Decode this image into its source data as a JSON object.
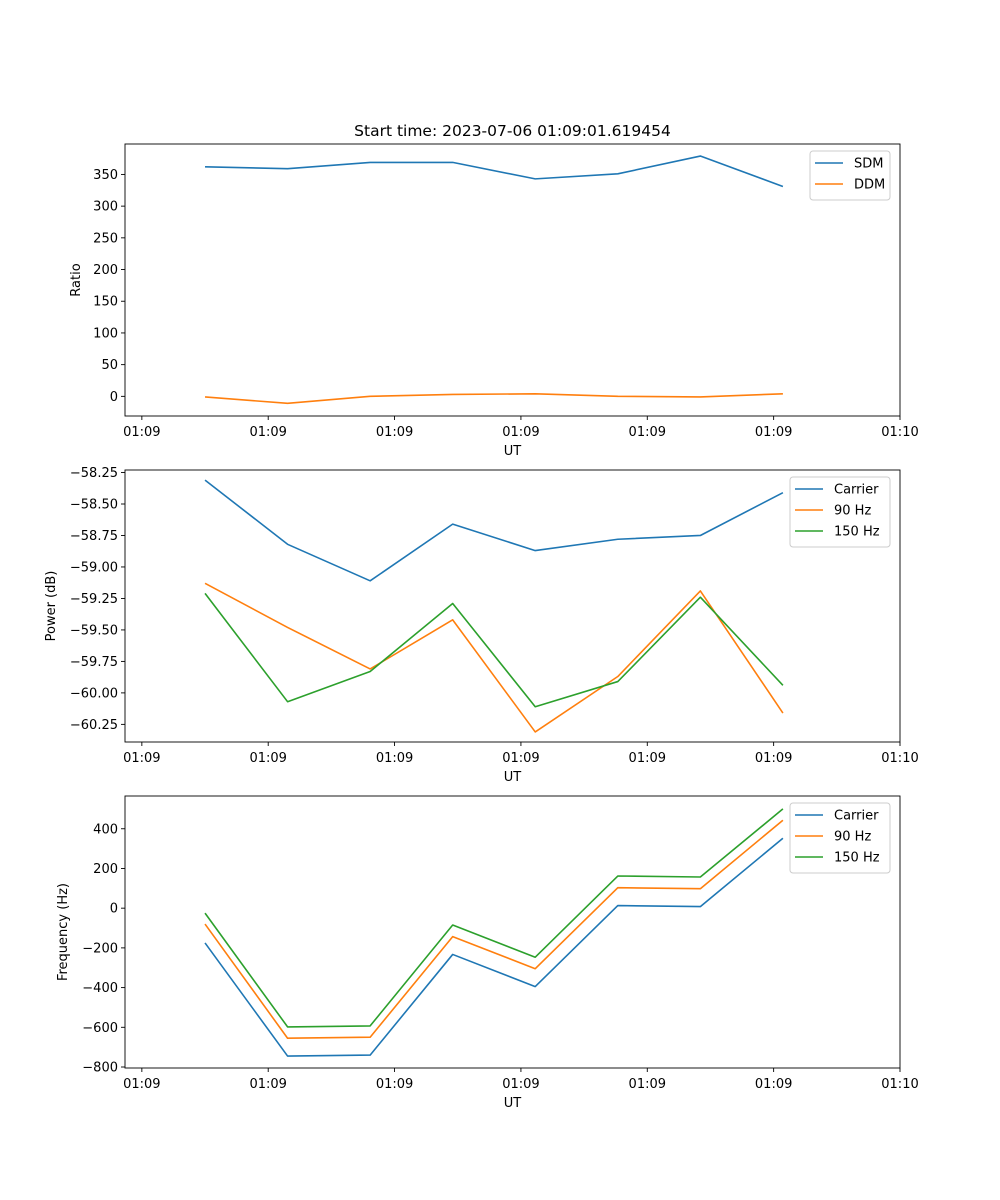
{
  "figure_title": "Start time: 2023-07-06 01:09:01.619454",
  "chart_data": [
    {
      "type": "line",
      "title": "Start time: 2023-07-06 01:09:01.619454",
      "xlabel": "UT",
      "ylabel": "Ratio",
      "xlim": [
        -0.2,
        9.0
      ],
      "ylim": [
        -31,
        398
      ],
      "x_ticks": [
        0,
        1.5,
        3,
        4.5,
        6,
        7.5,
        9
      ],
      "x_tick_labels": [
        "01:09",
        "01:09",
        "01:09",
        "01:09",
        "01:09",
        "01:09",
        "01:10"
      ],
      "y_ticks": [
        0,
        50,
        100,
        150,
        200,
        250,
        300,
        350
      ],
      "legend_position": "top-right",
      "x": [
        0.75,
        1.73,
        2.71,
        3.69,
        4.67,
        5.65,
        6.63,
        7.61
      ],
      "series": [
        {
          "name": "SDM",
          "color": "#1f77b4",
          "values": [
            362,
            359,
            369,
            369,
            343,
            351,
            379,
            331
          ]
        },
        {
          "name": "DDM",
          "color": "#ff7f0e",
          "values": [
            -1,
            -11,
            0,
            3,
            4,
            0,
            -1,
            4
          ]
        }
      ]
    },
    {
      "type": "line",
      "title": "",
      "xlabel": "UT",
      "ylabel": "Power (dB)",
      "xlim": [
        -0.2,
        9.0
      ],
      "ylim": [
        -60.39,
        -58.23
      ],
      "x_ticks": [
        0,
        1.5,
        3,
        4.5,
        6,
        7.5,
        9
      ],
      "x_tick_labels": [
        "01:09",
        "01:09",
        "01:09",
        "01:09",
        "01:09",
        "01:09",
        "01:10"
      ],
      "y_ticks": [
        -60.25,
        -60.0,
        -59.75,
        -59.5,
        -59.25,
        -59.0,
        -58.75,
        -58.5,
        -58.25
      ],
      "y_tick_labels": [
        "−60.25",
        "−60.00",
        "−59.75",
        "−59.50",
        "−59.25",
        "−59.00",
        "−58.75",
        "−58.50",
        "−58.25"
      ],
      "legend_position": "top-right",
      "x": [
        0.75,
        1.73,
        2.71,
        3.69,
        4.67,
        5.65,
        6.63,
        7.61
      ],
      "series": [
        {
          "name": "Carrier",
          "color": "#1f77b4",
          "values": [
            -58.31,
            -58.82,
            -59.11,
            -58.66,
            -58.87,
            -58.78,
            -58.75,
            -58.41
          ]
        },
        {
          "name": "90 Hz",
          "color": "#ff7f0e",
          "values": [
            -59.13,
            -59.48,
            -59.81,
            -59.42,
            -60.31,
            -59.87,
            -59.19,
            -60.16
          ]
        },
        {
          "name": "150 Hz",
          "color": "#2ca02c",
          "values": [
            -59.21,
            -60.07,
            -59.83,
            -59.29,
            -60.11,
            -59.91,
            -59.24,
            -59.94
          ]
        }
      ]
    },
    {
      "type": "line",
      "title": "",
      "xlabel": "UT",
      "ylabel": "Frequency (Hz)",
      "xlim": [
        -0.2,
        9.0
      ],
      "ylim": [
        -805,
        565
      ],
      "x_ticks": [
        0,
        1.5,
        3,
        4.5,
        6,
        7.5,
        9
      ],
      "x_tick_labels": [
        "01:09",
        "01:09",
        "01:09",
        "01:09",
        "01:09",
        "01:09",
        "01:10"
      ],
      "y_ticks": [
        -800,
        -600,
        -400,
        -200,
        0,
        200,
        400
      ],
      "y_tick_labels": [
        "−800",
        "−600",
        "−400",
        "−200",
        "0",
        "200",
        "400"
      ],
      "legend_position": "top-right",
      "x": [
        0.75,
        1.73,
        2.71,
        3.69,
        4.67,
        5.65,
        6.63,
        7.61
      ],
      "series": [
        {
          "name": "Carrier",
          "color": "#1f77b4",
          "values": [
            -175,
            -745,
            -740,
            -233,
            -395,
            13,
            8,
            352
          ]
        },
        {
          "name": "90 Hz",
          "color": "#ff7f0e",
          "values": [
            -80,
            -655,
            -650,
            -143,
            -305,
            103,
            98,
            443
          ]
        },
        {
          "name": "150 Hz",
          "color": "#2ca02c",
          "values": [
            -25,
            -598,
            -593,
            -85,
            -247,
            162,
            157,
            500
          ]
        }
      ]
    }
  ]
}
